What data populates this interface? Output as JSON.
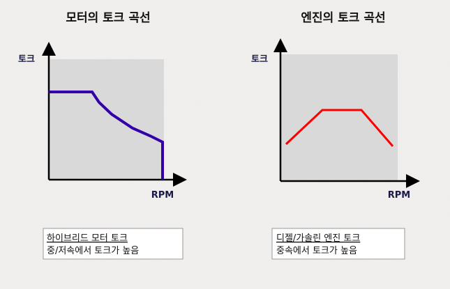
{
  "panels": [
    {
      "title": "모터의 토크 곡선",
      "y_label": "토크",
      "x_label": "RPM",
      "caption": {
        "heading": "하이브리드 모터 토크",
        "text": "중/저속에서 토크가 높음"
      }
    },
    {
      "title": "엔진의 토크 곡선",
      "y_label": "토크",
      "x_label": "RPM",
      "caption": {
        "heading": "디젤/가솔린 엔진 토크",
        "text": "중속에서 토크가 높음"
      }
    }
  ]
}
